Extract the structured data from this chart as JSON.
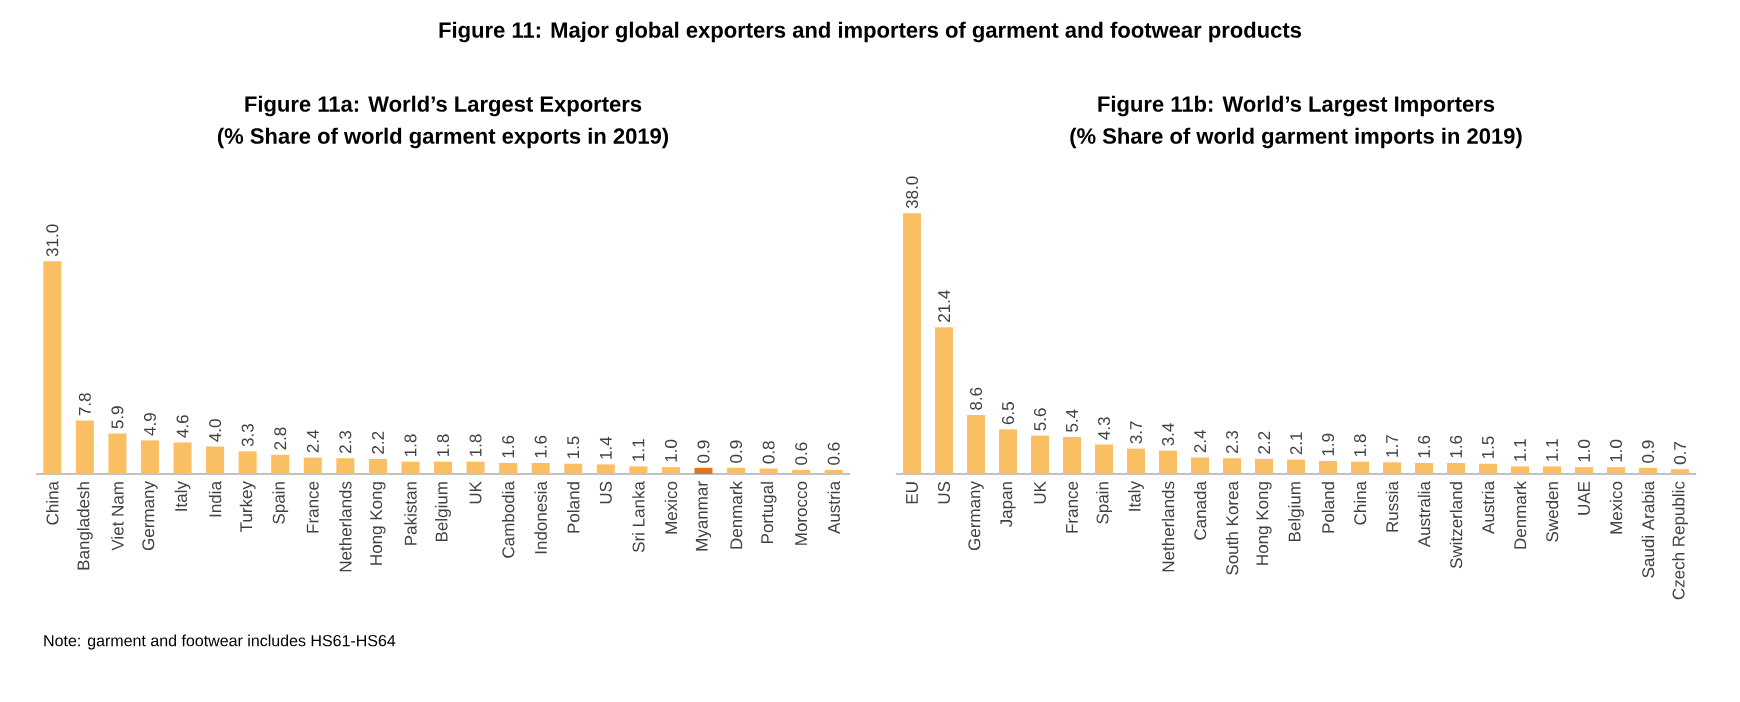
{
  "chart_data": [
    {
      "type": "bar",
      "title": "Figure 11a: World’s Largest Exporters",
      "subtitle": "(% Share of world garment exports in 2019)",
      "annotations": [
        "Figure 11: Major global exporters and importers of garment and footwear products",
        "Note: garment and footwear includes HS61-HS64"
      ],
      "categories": [
        "China",
        "Bangladesh",
        "Viet Nam",
        "Germany",
        "Italy",
        "India",
        "Turkey",
        "Spain",
        "France",
        "Netherlands",
        "Hong Kong",
        "Pakistan",
        "Belgium",
        "UK",
        "Cambodia",
        "Indonesia",
        "Poland",
        "US",
        "Sri Lanka",
        "Mexico",
        "Myanmar",
        "Denmark",
        "Portugal",
        "Morocco",
        "Austria"
      ],
      "values": [
        31.0,
        7.8,
        5.9,
        4.9,
        4.6,
        4.0,
        3.3,
        2.8,
        2.4,
        2.3,
        2.2,
        1.8,
        1.8,
        1.8,
        1.6,
        1.6,
        1.5,
        1.4,
        1.1,
        1.0,
        0.9,
        0.9,
        0.8,
        0.6,
        0.6
      ],
      "colors": [
        "#fbbf63",
        "#fbbf63",
        "#fbbf63",
        "#fbbf63",
        "#fbbf63",
        "#fbbf63",
        "#fbbf63",
        "#fbbf63",
        "#fbbf63",
        "#fbbf63",
        "#fbbf63",
        "#fbbf63",
        "#fbbf63",
        "#fbbf63",
        "#fbbf63",
        "#fbbf63",
        "#fbbf63",
        "#fbbf63",
        "#fbbf63",
        "#fbbf63",
        "#e0761e",
        "#fbbf63",
        "#fbbf63",
        "#fbbf63",
        "#fbbf63"
      ],
      "value_labels": [
        "31.0",
        "7.8",
        "5.9",
        "4.9",
        "4.6",
        "4.0",
        "3.3",
        "2.8",
        "2.4",
        "2.3",
        "2.2",
        "1.8",
        "1.8",
        "1.8",
        "1.6",
        "1.6",
        "1.5",
        "1.4",
        "1.1",
        "1.0",
        "0.9",
        "0.9",
        "0.8",
        "0.6",
        "0.6"
      ]
    },
    {
      "type": "bar",
      "title": "Figure 11b: World’s Largest Importers",
      "subtitle": "(% Share of world garment imports in 2019)",
      "categories": [
        "EU",
        "US",
        "Germany",
        "Japan",
        "UK",
        "France",
        "Spain",
        "Italy",
        "Netherlands",
        "Canada",
        "South Korea",
        "Hong Kong",
        "Belgium",
        "Poland",
        "China",
        "Russia",
        "Australia",
        "Switzerland",
        "Austria",
        "Denmark",
        "Sweden",
        "UAE",
        "Mexico",
        "Saudi Arabia",
        "Czech Republic"
      ],
      "values": [
        38.0,
        21.4,
        8.6,
        6.5,
        5.6,
        5.4,
        4.3,
        3.7,
        3.4,
        2.4,
        2.3,
        2.2,
        2.1,
        1.9,
        1.8,
        1.7,
        1.6,
        1.6,
        1.5,
        1.1,
        1.1,
        1.0,
        1.0,
        0.9,
        0.7
      ],
      "color": "#fbbf63",
      "value_labels": [
        "38.0",
        "21.4",
        "8.6",
        "6.5",
        "5.6",
        "5.4",
        "4.3",
        "3.7",
        "3.4",
        "2.4",
        "2.3",
        "2.2",
        "2.1",
        "1.9",
        "1.8",
        "1.7",
        "1.6",
        "1.6",
        "1.5",
        "1.1",
        "1.1",
        "1.0",
        "1.0",
        "0.9",
        "0.7"
      ]
    }
  ]
}
